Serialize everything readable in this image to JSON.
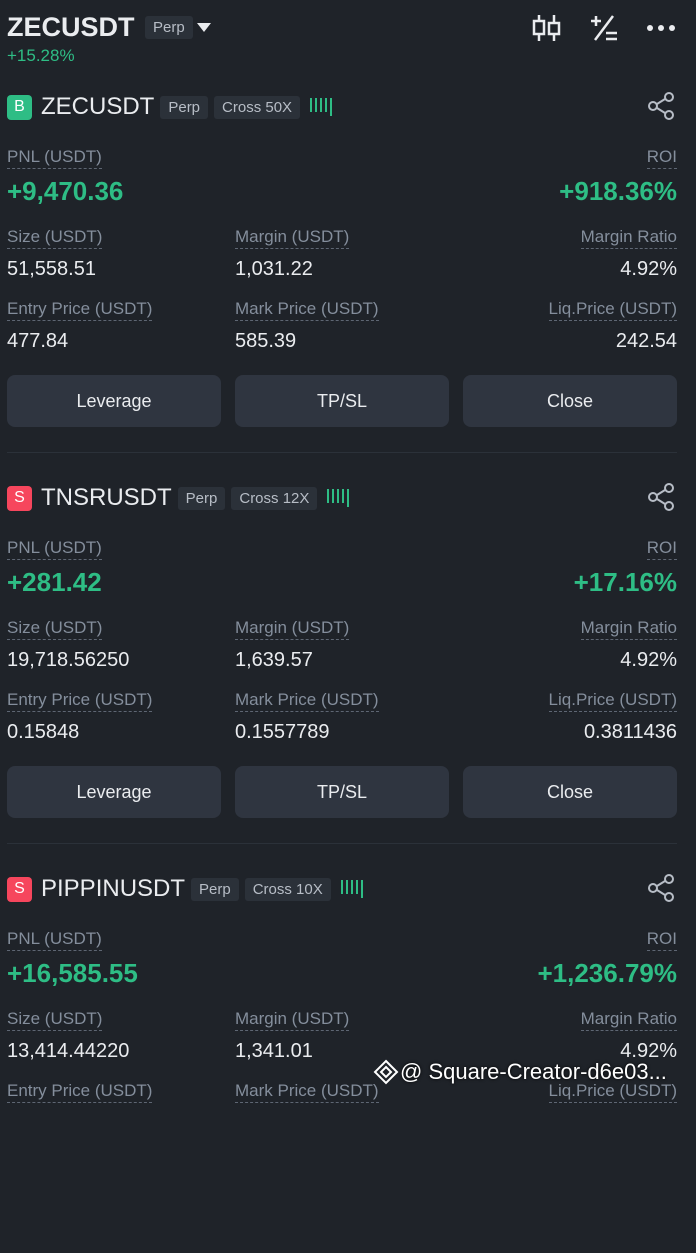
{
  "header": {
    "symbol": "ZECUSDT",
    "market": "Perp",
    "change": "+15.28%"
  },
  "labels": {
    "pnl": "PNL (USDT)",
    "roi": "ROI",
    "size": "Size (USDT)",
    "margin": "Margin (USDT)",
    "margin_ratio": "Margin Ratio",
    "entry_price": "Entry Price (USDT)",
    "mark_price": "Mark Price (USDT)",
    "liq_price": "Liq.Price (USDT)"
  },
  "buttons": [
    "Leverage",
    "TP/SL",
    "Close"
  ],
  "positions": [
    {
      "side": "B",
      "symbol": "ZECUSDT",
      "market": "Perp",
      "margin_mode": "Cross 50X",
      "pnl": "+9,470.36",
      "roi": "+918.36%",
      "size": "51,558.51",
      "margin": "1,031.22",
      "margin_ratio": "4.92%",
      "entry_price": "477.84",
      "mark_price": "585.39",
      "liq_price": "242.54"
    },
    {
      "side": "S",
      "symbol": "TNSRUSDT",
      "market": "Perp",
      "margin_mode": "Cross 12X",
      "pnl": "+281.42",
      "roi": "+17.16%",
      "size": "19,718.56250",
      "margin": "1,639.57",
      "margin_ratio": "4.92%",
      "entry_price": "0.15848",
      "mark_price": "0.1557789",
      "liq_price": "0.3811436"
    },
    {
      "side": "S",
      "symbol": "PIPPINUSDT",
      "market": "Perp",
      "margin_mode": "Cross 10X",
      "pnl": "+16,585.55",
      "roi": "+1,236.79%",
      "size": "13,414.44220",
      "margin": "1,341.01",
      "margin_ratio": "4.92%"
    }
  ],
  "watermark": "@ Square-Creator-d6e03..."
}
